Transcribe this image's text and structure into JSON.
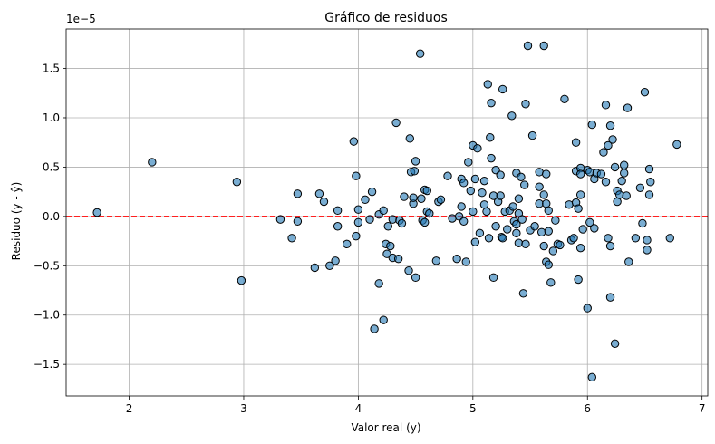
{
  "chart_data": {
    "type": "scatter",
    "title": "Gráfico de residuos",
    "xlabel": "Valor real (y)",
    "ylabel": "Residuo (y - ŷ)",
    "y_scale_label": "1e−5",
    "xlim": [
      1.45,
      7.05
    ],
    "ylim": [
      -1.82,
      1.9
    ],
    "y_multiplier": 1e-05,
    "xticks": [
      2,
      3,
      4,
      5,
      6,
      7
    ],
    "yticks": [
      -1.5,
      -1.0,
      -0.5,
      0.0,
      0.5,
      1.0,
      1.5
    ],
    "ytick_labels": [
      "−1.5",
      "−1.0",
      "−0.5",
      "0.0",
      "0.5",
      "1.0",
      "1.5"
    ],
    "xtick_labels": [
      "2",
      "3",
      "4",
      "5",
      "6",
      "7"
    ],
    "grid": true,
    "reference_line": {
      "y": 0,
      "color": "#ff0000",
      "style": "dashed"
    },
    "point_color": "#1f77b4",
    "points": [
      [
        1.72,
        0.04
      ],
      [
        2.2,
        0.55
      ],
      [
        2.94,
        0.35
      ],
      [
        2.98,
        -0.65
      ],
      [
        3.32,
        -0.03
      ],
      [
        3.42,
        -0.22
      ],
      [
        3.47,
        0.23
      ],
      [
        3.47,
        -0.05
      ],
      [
        3.62,
        -0.52
      ],
      [
        3.66,
        0.23
      ],
      [
        3.7,
        0.15
      ],
      [
        3.75,
        -0.5
      ],
      [
        3.8,
        -0.45
      ],
      [
        3.82,
        0.06
      ],
      [
        3.82,
        -0.1
      ],
      [
        3.9,
        -0.28
      ],
      [
        3.96,
        0.76
      ],
      [
        3.98,
        0.41
      ],
      [
        3.98,
        -0.2
      ],
      [
        4.0,
        0.07
      ],
      [
        4.0,
        -0.06
      ],
      [
        4.06,
        0.17
      ],
      [
        4.1,
        -0.03
      ],
      [
        4.12,
        0.25
      ],
      [
        4.14,
        -1.14
      ],
      [
        4.18,
        -0.68
      ],
      [
        4.18,
        0.02
      ],
      [
        4.22,
        -1.05
      ],
      [
        4.22,
        0.06
      ],
      [
        4.24,
        -0.28
      ],
      [
        4.25,
        -0.38
      ],
      [
        4.26,
        -0.1
      ],
      [
        4.28,
        -0.3
      ],
      [
        4.3,
        -0.03
      ],
      [
        4.3,
        -0.42
      ],
      [
        4.33,
        0.95
      ],
      [
        4.35,
        -0.43
      ],
      [
        4.36,
        -0.04
      ],
      [
        4.38,
        -0.07
      ],
      [
        4.4,
        0.2
      ],
      [
        4.44,
        -0.55
      ],
      [
        4.45,
        0.79
      ],
      [
        4.46,
        0.45
      ],
      [
        4.48,
        0.13
      ],
      [
        4.48,
        0.19
      ],
      [
        4.49,
        0.46
      ],
      [
        4.5,
        0.56
      ],
      [
        4.5,
        -0.62
      ],
      [
        4.54,
        1.65
      ],
      [
        4.55,
        0.18
      ],
      [
        4.56,
        -0.04
      ],
      [
        4.58,
        0.27
      ],
      [
        4.58,
        -0.06
      ],
      [
        4.6,
        0.26
      ],
      [
        4.6,
        0.05
      ],
      [
        4.62,
        0.03
      ],
      [
        4.68,
        -0.45
      ],
      [
        4.7,
        0.15
      ],
      [
        4.72,
        0.17
      ],
      [
        4.78,
        0.41
      ],
      [
        4.82,
        -0.02
      ],
      [
        4.86,
        -0.43
      ],
      [
        4.88,
        0.0
      ],
      [
        4.9,
        0.38
      ],
      [
        4.9,
        0.1
      ],
      [
        4.92,
        -0.05
      ],
      [
        4.92,
        0.34
      ],
      [
        4.94,
        -0.46
      ],
      [
        4.96,
        0.55
      ],
      [
        4.98,
        0.26
      ],
      [
        5.0,
        0.72
      ],
      [
        5.0,
        0.05
      ],
      [
        5.02,
        -0.26
      ],
      [
        5.02,
        0.38
      ],
      [
        5.04,
        0.69
      ],
      [
        5.06,
        -0.17
      ],
      [
        5.08,
        0.24
      ],
      [
        5.1,
        0.12
      ],
      [
        5.1,
        0.36
      ],
      [
        5.12,
        0.05
      ],
      [
        5.13,
        1.34
      ],
      [
        5.14,
        -0.22
      ],
      [
        5.15,
        0.8
      ],
      [
        5.16,
        1.15
      ],
      [
        5.16,
        0.59
      ],
      [
        5.18,
        0.21
      ],
      [
        5.18,
        -0.62
      ],
      [
        5.2,
        -0.1
      ],
      [
        5.2,
        0.47
      ],
      [
        5.22,
        0.15
      ],
      [
        5.24,
        0.42
      ],
      [
        5.24,
        0.21
      ],
      [
        5.25,
        -0.21
      ],
      [
        5.26,
        1.29
      ],
      [
        5.26,
        -0.22
      ],
      [
        5.28,
        0.05
      ],
      [
        5.3,
        -0.13
      ],
      [
        5.32,
        0.06
      ],
      [
        5.34,
        1.02
      ],
      [
        5.35,
        0.1
      ],
      [
        5.36,
        -0.05
      ],
      [
        5.38,
        -0.17
      ],
      [
        5.38,
        0.44
      ],
      [
        5.38,
        -0.08
      ],
      [
        5.4,
        0.03
      ],
      [
        5.4,
        0.18
      ],
      [
        5.4,
        -0.27
      ],
      [
        5.42,
        0.4
      ],
      [
        5.43,
        -0.03
      ],
      [
        5.44,
        -0.78
      ],
      [
        5.45,
        0.32
      ],
      [
        5.46,
        1.14
      ],
      [
        5.46,
        -0.28
      ],
      [
        5.48,
        1.73
      ],
      [
        5.5,
        -0.14
      ],
      [
        5.52,
        0.82
      ],
      [
        5.54,
        -0.1
      ],
      [
        5.58,
        0.45
      ],
      [
        5.58,
        0.13
      ],
      [
        5.58,
        0.3
      ],
      [
        5.6,
        -0.16
      ],
      [
        5.62,
        0.22
      ],
      [
        5.62,
        -0.3
      ],
      [
        5.62,
        1.73
      ],
      [
        5.64,
        0.43
      ],
      [
        5.64,
        -0.46
      ],
      [
        5.64,
        0.13
      ],
      [
        5.66,
        -0.49
      ],
      [
        5.66,
        0.06
      ],
      [
        5.66,
        -0.15
      ],
      [
        5.68,
        -0.67
      ],
      [
        5.7,
        -0.35
      ],
      [
        5.72,
        -0.04
      ],
      [
        5.74,
        -0.28
      ],
      [
        5.76,
        -0.29
      ],
      [
        5.8,
        1.19
      ],
      [
        5.84,
        0.12
      ],
      [
        5.86,
        -0.24
      ],
      [
        5.88,
        -0.22
      ],
      [
        5.9,
        0.14
      ],
      [
        5.9,
        0.46
      ],
      [
        5.9,
        0.75
      ],
      [
        5.92,
        -0.64
      ],
      [
        5.92,
        0.08
      ],
      [
        5.94,
        0.49
      ],
      [
        5.94,
        0.43
      ],
      [
        5.94,
        0.22
      ],
      [
        5.94,
        -0.32
      ],
      [
        5.96,
        -0.13
      ],
      [
        6.0,
        0.47
      ],
      [
        6.0,
        -0.93
      ],
      [
        6.02,
        0.45
      ],
      [
        6.02,
        -0.06
      ],
      [
        6.04,
        0.93
      ],
      [
        6.04,
        -1.63
      ],
      [
        6.06,
        0.38
      ],
      [
        6.06,
        -0.12
      ],
      [
        6.08,
        0.44
      ],
      [
        6.12,
        0.43
      ],
      [
        6.14,
        0.65
      ],
      [
        6.16,
        1.13
      ],
      [
        6.16,
        0.35
      ],
      [
        6.18,
        -0.22
      ],
      [
        6.18,
        0.72
      ],
      [
        6.2,
        -0.3
      ],
      [
        6.2,
        0.92
      ],
      [
        6.2,
        -0.82
      ],
      [
        6.22,
        0.78
      ],
      [
        6.24,
        0.5
      ],
      [
        6.24,
        -1.29
      ],
      [
        6.26,
        0.26
      ],
      [
        6.26,
        0.15
      ],
      [
        6.28,
        0.22
      ],
      [
        6.3,
        0.36
      ],
      [
        6.32,
        0.44
      ],
      [
        6.32,
        0.52
      ],
      [
        6.34,
        0.21
      ],
      [
        6.35,
        1.1
      ],
      [
        6.36,
        -0.46
      ],
      [
        6.42,
        -0.22
      ],
      [
        6.46,
        0.29
      ],
      [
        6.48,
        -0.07
      ],
      [
        6.5,
        1.26
      ],
      [
        6.52,
        -0.24
      ],
      [
        6.52,
        -0.34
      ],
      [
        6.54,
        0.22
      ],
      [
        6.54,
        0.48
      ],
      [
        6.55,
        0.35
      ],
      [
        6.72,
        -0.22
      ],
      [
        6.78,
        0.73
      ]
    ]
  }
}
